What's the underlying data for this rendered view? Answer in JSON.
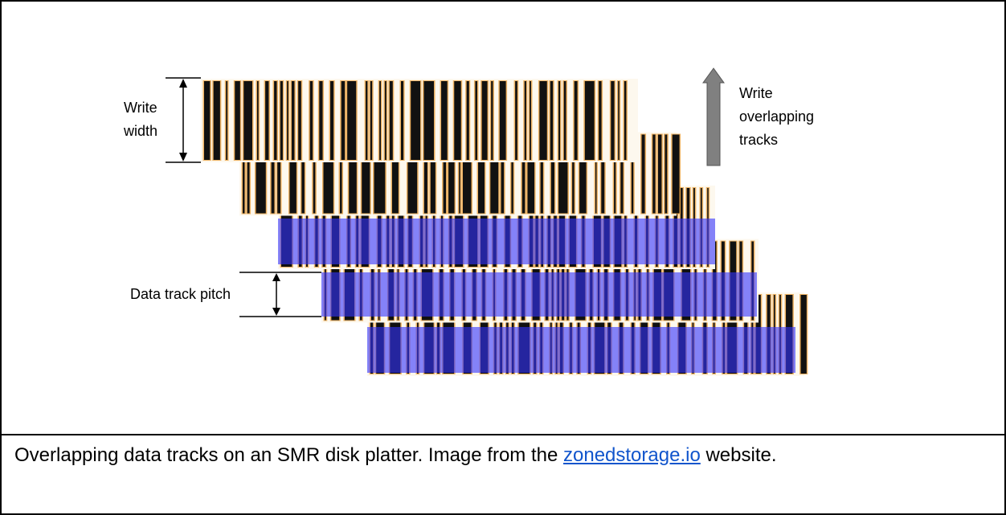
{
  "figure": {
    "labels": {
      "write_width": "Write width",
      "write_direction": "Write overlapping tracks",
      "track_pitch": "Data track pitch"
    }
  },
  "caption": {
    "text_before": "Overlapping data tracks on an SMR disk platter. Image from the ",
    "link": "zonedstorage.io",
    "text_after": " website."
  }
}
